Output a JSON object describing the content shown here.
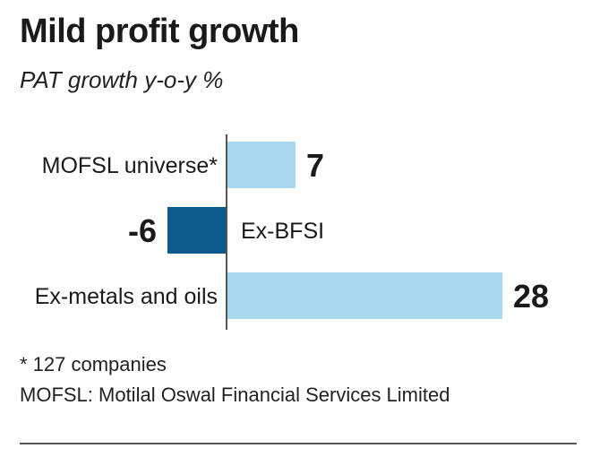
{
  "chart_data": {
    "type": "bar",
    "orientation": "horizontal",
    "title": "Mild profit growth",
    "subtitle": "PAT growth y-o-y %",
    "categories": [
      "MOFSL universe*",
      "Ex-BFSI",
      "Ex-metals and oils"
    ],
    "values": [
      7,
      -6,
      28
    ],
    "value_labels": [
      "7",
      "-6",
      "28"
    ],
    "colors": {
      "positive": "#a8d8ee",
      "negative": "#0d5a8c",
      "axis": "#555555"
    },
    "footnotes": [
      "* 127 companies",
      "MOFSL: Motilal Oswal Financial Services Limited"
    ],
    "grid": false,
    "legend": "none"
  }
}
